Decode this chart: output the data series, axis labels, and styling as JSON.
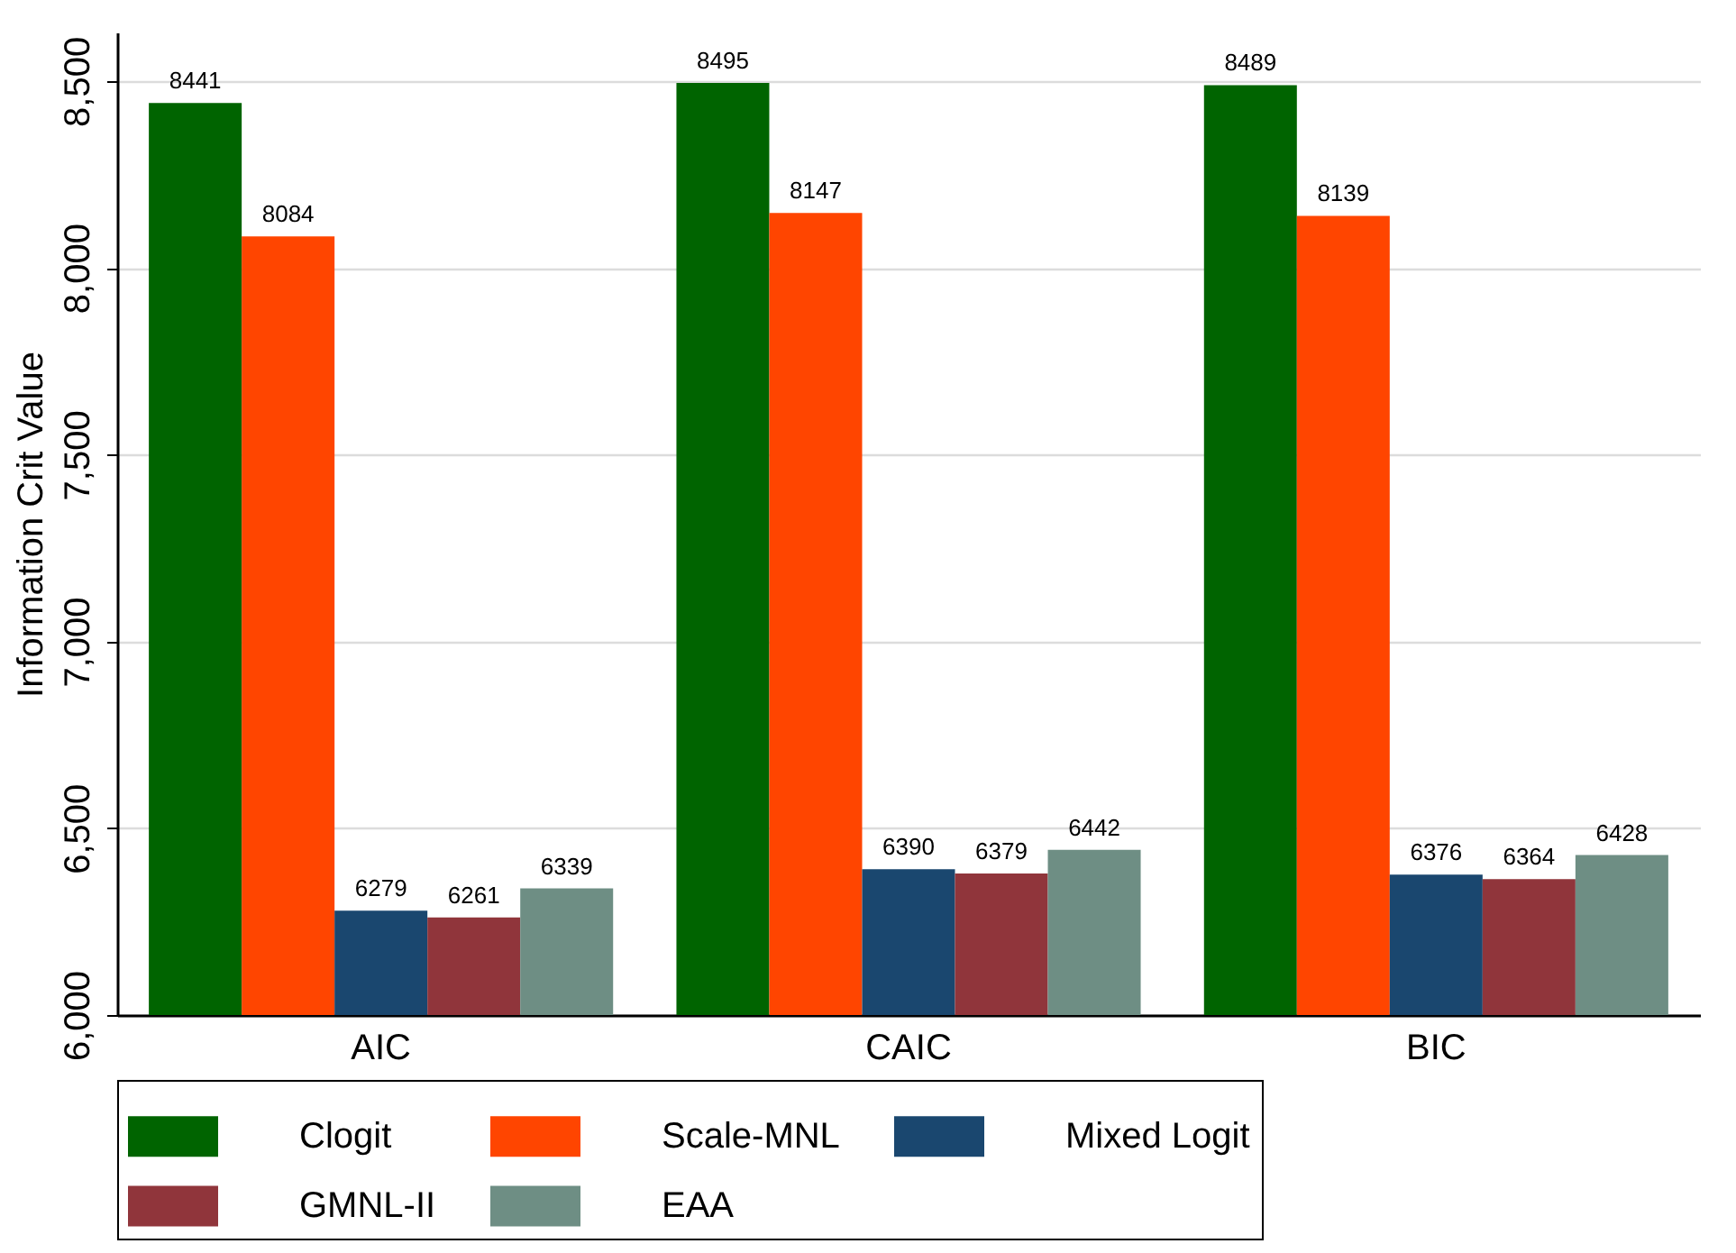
{
  "chart_data": {
    "type": "bar",
    "ylabel": "Information Crit Value",
    "categories": [
      "AIC",
      "CAIC",
      "BIC"
    ],
    "series": [
      {
        "name": "Clogit",
        "color": "#006400",
        "values": [
          8441,
          8495,
          8489
        ]
      },
      {
        "name": "Scale-MNL",
        "color": "#ff4500",
        "values": [
          8084,
          8147,
          8139
        ]
      },
      {
        "name": "Mixed Logit",
        "color": "#1a476f",
        "values": [
          6279,
          6390,
          6376
        ]
      },
      {
        "name": "GMNL-II",
        "color": "#90353b",
        "values": [
          6261,
          6379,
          6364
        ]
      },
      {
        "name": "EAA",
        "color": "#6e8e84",
        "values": [
          6339,
          6442,
          6428
        ]
      }
    ],
    "ylim": [
      6000,
      8630
    ],
    "yticks": [
      {
        "value": 6000,
        "label": "6,000"
      },
      {
        "value": 6500,
        "label": "6,500"
      },
      {
        "value": 7000,
        "label": "7,000"
      },
      {
        "value": 7500,
        "label": "7,500"
      },
      {
        "value": 8000,
        "label": "8,000"
      },
      {
        "value": 8500,
        "label": "8,500"
      }
    ],
    "grid": "y",
    "legend": "bottom",
    "data_labels": true
  }
}
